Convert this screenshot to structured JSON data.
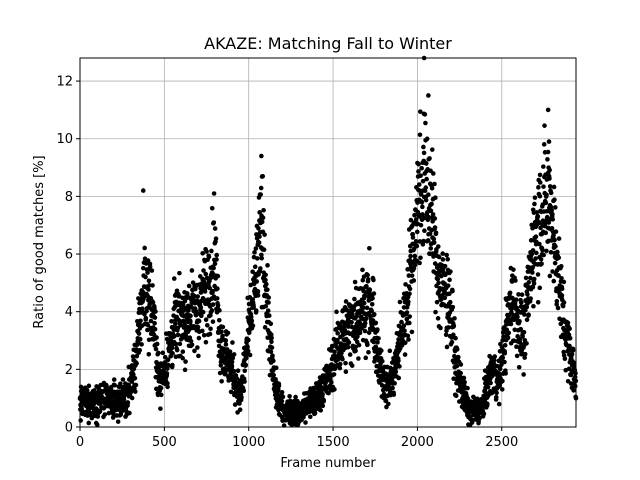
{
  "chart_data": {
    "type": "scatter",
    "title": "AKAZE: Matching Fall to Winter",
    "xlabel": "Frame number",
    "ylabel": "Ratio of good matches [%]",
    "xlim": [
      0,
      2940
    ],
    "ylim": [
      0,
      12.8
    ],
    "xticks": [
      0,
      500,
      1000,
      1500,
      2000,
      2500
    ],
    "yticks": [
      0,
      2,
      4,
      6,
      8,
      10,
      12
    ],
    "grid": true,
    "marker_color": "#000000",
    "trend": [
      [
        0,
        0.8
      ],
      [
        100,
        0.9
      ],
      [
        200,
        0.9
      ],
      [
        280,
        1.0
      ],
      [
        330,
        2.2
      ],
      [
        380,
        5.0
      ],
      [
        430,
        4.0
      ],
      [
        470,
        1.5
      ],
      [
        520,
        2.4
      ],
      [
        560,
        3.5
      ],
      [
        620,
        3.8
      ],
      [
        700,
        4.0
      ],
      [
        760,
        5.0
      ],
      [
        800,
        5.8
      ],
      [
        830,
        3.0
      ],
      [
        900,
        2.0
      ],
      [
        950,
        1.0
      ],
      [
        990,
        2.8
      ],
      [
        1040,
        5.0
      ],
      [
        1080,
        7.0
      ],
      [
        1110,
        4.0
      ],
      [
        1150,
        1.5
      ],
      [
        1200,
        0.6
      ],
      [
        1300,
        0.5
      ],
      [
        1400,
        1.0
      ],
      [
        1480,
        1.8
      ],
      [
        1540,
        3.0
      ],
      [
        1610,
        3.5
      ],
      [
        1680,
        4.2
      ],
      [
        1730,
        4.0
      ],
      [
        1770,
        2.2
      ],
      [
        1820,
        1.4
      ],
      [
        1860,
        1.8
      ],
      [
        1930,
        4.0
      ],
      [
        1980,
        6.5
      ],
      [
        2010,
        8.0
      ],
      [
        2050,
        8.5
      ],
      [
        2090,
        7.0
      ],
      [
        2130,
        5.0
      ],
      [
        2190,
        4.5
      ],
      [
        2230,
        2.0
      ],
      [
        2300,
        0.6
      ],
      [
        2380,
        0.6
      ],
      [
        2440,
        2.0
      ],
      [
        2480,
        1.5
      ],
      [
        2520,
        3.0
      ],
      [
        2560,
        4.5
      ],
      [
        2630,
        3.0
      ],
      [
        2690,
        6.5
      ],
      [
        2740,
        7.5
      ],
      [
        2790,
        7.8
      ],
      [
        2820,
        6.0
      ],
      [
        2870,
        3.5
      ],
      [
        2940,
        1.5
      ]
    ],
    "peaks": [
      {
        "x": 375,
        "y": 8.2
      },
      {
        "x": 795,
        "y": 8.1
      },
      {
        "x": 1075,
        "y": 9.4
      },
      {
        "x": 1715,
        "y": 6.2
      },
      {
        "x": 2040,
        "y": 12.8
      },
      {
        "x": 2065,
        "y": 11.5
      },
      {
        "x": 2775,
        "y": 11.0
      },
      {
        "x": 2780,
        "y": 9.9
      }
    ],
    "n_points": 2900
  }
}
